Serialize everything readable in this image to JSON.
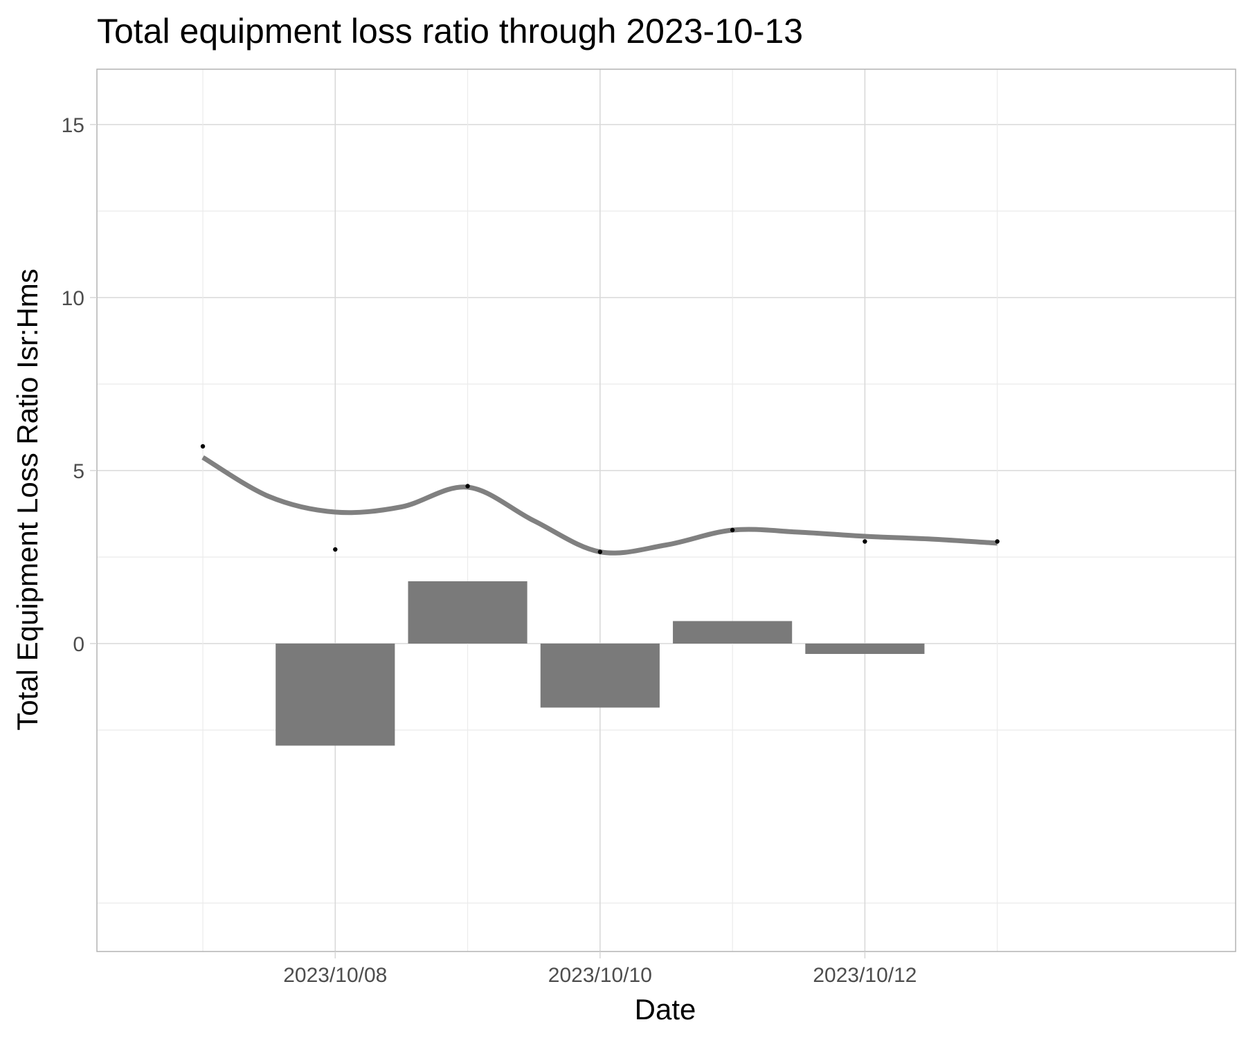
{
  "chart_data": {
    "type": "bar",
    "title": "Total equipment loss ratio through 2023-10-13",
    "xlabel": "Date",
    "ylabel": "Total Equipment Loss Ratio Isr:Hms",
    "x_tick_labels": [
      {
        "date": "2023-10-08",
        "label": "2023/10/08"
      },
      {
        "date": "2023-10-10",
        "label": "2023/10/10"
      },
      {
        "date": "2023-10-12",
        "label": "2023/10/12"
      }
    ],
    "y_ticks": [
      0,
      5,
      10,
      15
    ],
    "xlim": [
      "2023-10-06.2",
      "2023-10-14.8"
    ],
    "ylim": [
      -8.9,
      16.6
    ],
    "grid": true,
    "series": [
      {
        "type": "bar",
        "x": [
          "2023-10-08",
          "2023-10-09",
          "2023-10-10",
          "2023-10-11",
          "2023-10-12"
        ],
        "values": [
          -2.95,
          1.8,
          -1.85,
          0.65,
          -0.3
        ]
      },
      {
        "type": "scatter",
        "x": [
          "2023-10-07",
          "2023-10-08",
          "2023-10-09",
          "2023-10-10",
          "2023-10-11",
          "2023-10-12",
          "2023-10-13"
        ],
        "values": [
          5.7,
          2.72,
          4.55,
          2.65,
          3.28,
          2.95,
          2.95
        ]
      },
      {
        "type": "line",
        "smooth": true,
        "x": [
          "2023-10-07",
          "2023-10-07.5",
          "2023-10-08",
          "2023-10-08.5",
          "2023-10-09",
          "2023-10-09.5",
          "2023-10-10",
          "2023-10-10.5",
          "2023-10-11",
          "2023-10-11.5",
          "2023-10-12",
          "2023-10-12.5",
          "2023-10-13"
        ],
        "values": [
          5.38,
          4.25,
          3.8,
          3.95,
          4.52,
          3.55,
          2.65,
          2.85,
          3.28,
          3.22,
          3.1,
          3.02,
          2.9
        ]
      }
    ],
    "colors": {
      "bar": "#7a7a7a",
      "line": "#808080",
      "point": "#000000",
      "grid_major": "#d9d9d9",
      "grid_minor": "#ebebeb",
      "panel_border": "#b3b3b3",
      "tick_text": "#4d4d4d"
    }
  }
}
